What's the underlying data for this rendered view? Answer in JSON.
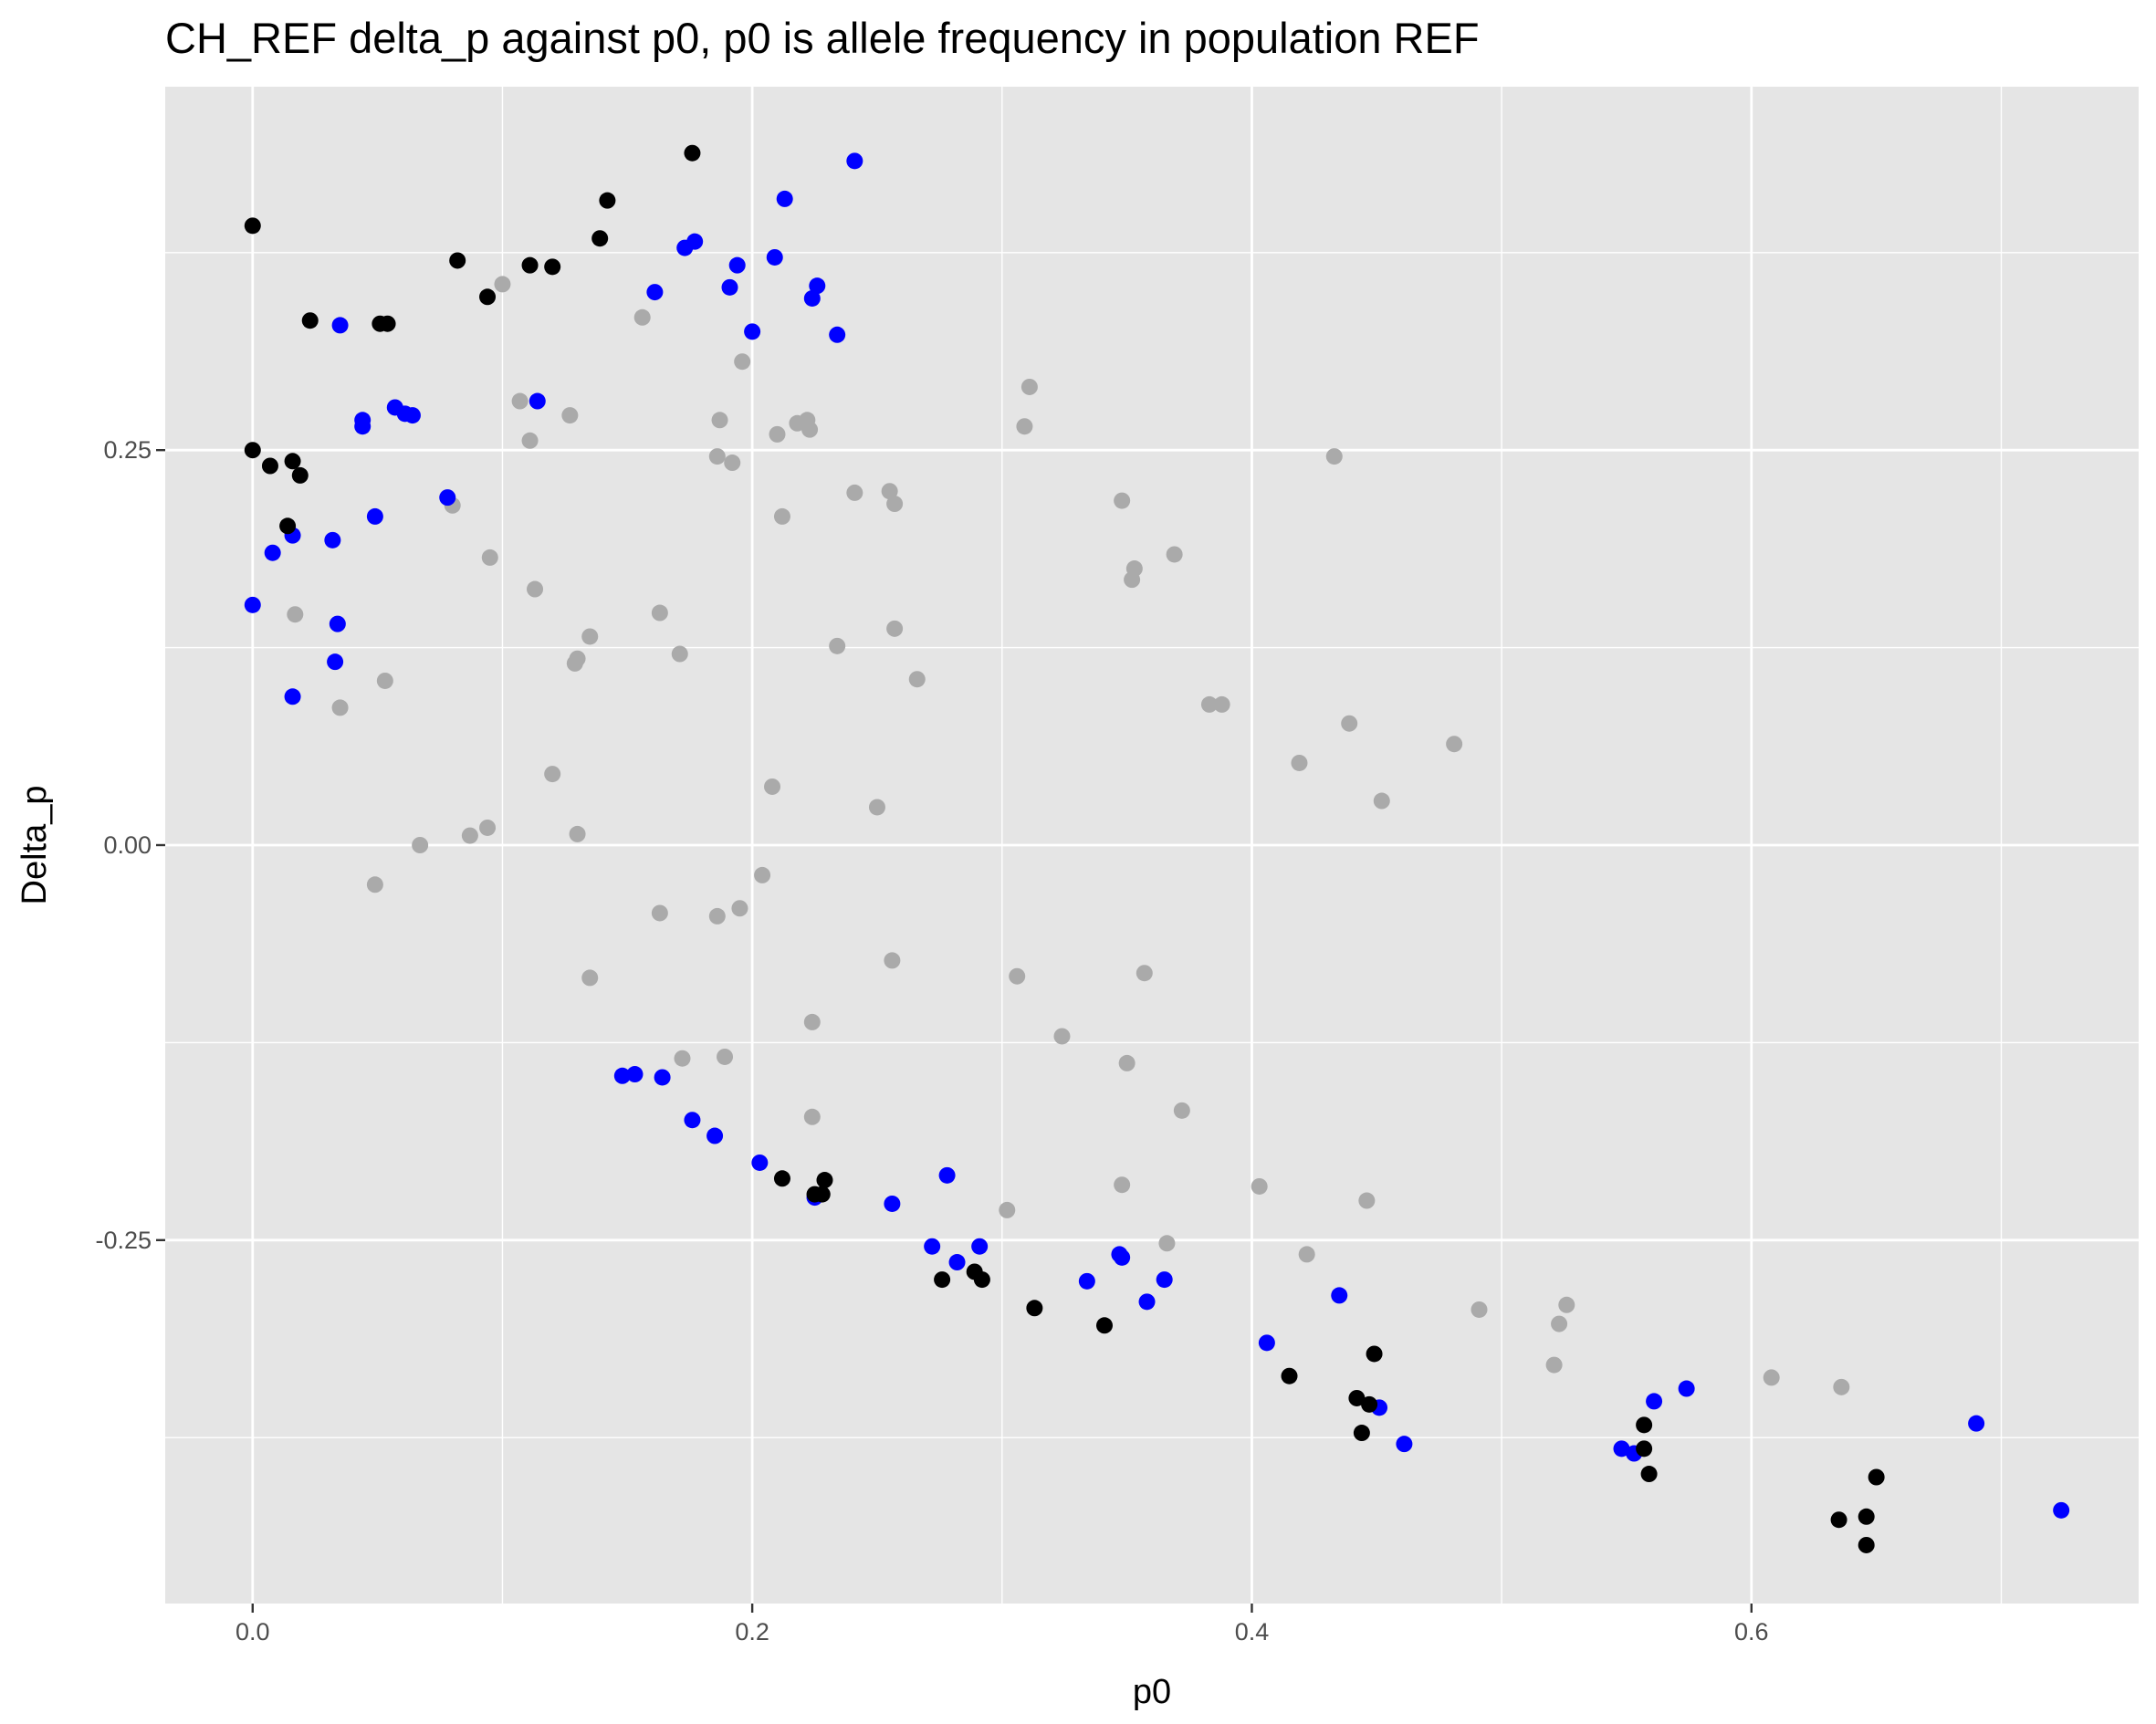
{
  "chart_data": {
    "type": "scatter",
    "title": "CH_REF delta_p against p0, p0 is allele frequency in population REF",
    "xlabel": "p0",
    "ylabel": "Delta_p",
    "xlim": [
      -0.035,
      0.755
    ],
    "ylim": [
      -0.48,
      0.48
    ],
    "x_ticks": [
      0.0,
      0.2,
      0.4,
      0.6
    ],
    "x_tick_labels": [
      "0.0",
      "0.2",
      "0.4",
      "0.6"
    ],
    "y_ticks": [
      -0.25,
      0.0,
      0.25
    ],
    "y_tick_labels": [
      "-0.25",
      "0.00",
      "0.25"
    ],
    "grid": true,
    "legend": "none",
    "colors": {
      "panel_background": "#e5e5e5",
      "grid": "#ffffff",
      "gray": "#aaaaaa",
      "blue": "#0000ff",
      "black": "#000000"
    },
    "series": [
      {
        "color": "gray",
        "points": [
          [
            0.1,
            0.355
          ],
          [
            0.156,
            0.334
          ],
          [
            0.196,
            0.306
          ],
          [
            0.311,
            0.29
          ],
          [
            0.107,
            0.281
          ],
          [
            0.127,
            0.272
          ],
          [
            0.187,
            0.269
          ],
          [
            0.222,
            0.269
          ],
          [
            0.218,
            0.267
          ],
          [
            0.223,
            0.263
          ],
          [
            0.21,
            0.26
          ],
          [
            0.309,
            0.265
          ],
          [
            0.111,
            0.256
          ],
          [
            0.186,
            0.246
          ],
          [
            0.192,
            0.242
          ],
          [
            0.433,
            0.246
          ],
          [
            0.241,
            0.223
          ],
          [
            0.255,
            0.224
          ],
          [
            0.257,
            0.216
          ],
          [
            0.348,
            0.218
          ],
          [
            0.08,
            0.215
          ],
          [
            0.212,
            0.208
          ],
          [
            0.369,
            0.184
          ],
          [
            0.095,
            0.182
          ],
          [
            0.353,
            0.175
          ],
          [
            0.352,
            0.168
          ],
          [
            0.113,
            0.162
          ],
          [
            0.017,
            0.146
          ],
          [
            0.163,
            0.147
          ],
          [
            0.257,
            0.137
          ],
          [
            0.135,
            0.132
          ],
          [
            0.234,
            0.126
          ],
          [
            0.171,
            0.121
          ],
          [
            0.13,
            0.118
          ],
          [
            0.129,
            0.115
          ],
          [
            0.266,
            0.105
          ],
          [
            0.053,
            0.104
          ],
          [
            0.035,
            0.087
          ],
          [
            0.383,
            0.089
          ],
          [
            0.388,
            0.089
          ],
          [
            0.439,
            0.077
          ],
          [
            0.481,
            0.064
          ],
          [
            0.419,
            0.052
          ],
          [
            0.12,
            0.045
          ],
          [
            0.208,
            0.037
          ],
          [
            0.25,
            0.024
          ],
          [
            0.452,
            0.028
          ],
          [
            0.094,
            0.011
          ],
          [
            0.087,
            0.006
          ],
          [
            0.13,
            0.007
          ],
          [
            0.067,
            0.0
          ],
          [
            0.204,
            -0.019
          ],
          [
            0.049,
            -0.025
          ],
          [
            0.195,
            -0.04
          ],
          [
            0.163,
            -0.043
          ],
          [
            0.186,
            -0.045
          ],
          [
            0.256,
            -0.073
          ],
          [
            0.306,
            -0.083
          ],
          [
            0.357,
            -0.081
          ],
          [
            0.135,
            -0.084
          ],
          [
            0.224,
            -0.112
          ],
          [
            0.324,
            -0.121
          ],
          [
            0.172,
            -0.135
          ],
          [
            0.189,
            -0.134
          ],
          [
            0.35,
            -0.138
          ],
          [
            0.224,
            -0.172
          ],
          [
            0.372,
            -0.168
          ],
          [
            0.348,
            -0.215
          ],
          [
            0.403,
            -0.216
          ],
          [
            0.446,
            -0.225
          ],
          [
            0.302,
            -0.231
          ],
          [
            0.366,
            -0.252
          ],
          [
            0.422,
            -0.259
          ],
          [
            0.526,
            -0.291
          ],
          [
            0.491,
            -0.294
          ],
          [
            0.523,
            -0.303
          ],
          [
            0.521,
            -0.329
          ],
          [
            0.608,
            -0.337
          ],
          [
            0.636,
            -0.343
          ]
        ]
      },
      {
        "color": "blue",
        "points": [
          [
            0.241,
            0.433
          ],
          [
            0.213,
            0.409
          ],
          [
            0.177,
            0.382
          ],
          [
            0.173,
            0.378
          ],
          [
            0.209,
            0.372
          ],
          [
            0.194,
            0.367
          ],
          [
            0.226,
            0.354
          ],
          [
            0.191,
            0.353
          ],
          [
            0.161,
            0.35
          ],
          [
            0.224,
            0.346
          ],
          [
            0.2,
            0.325
          ],
          [
            0.234,
            0.323
          ],
          [
            0.035,
            0.329
          ],
          [
            0.114,
            0.281
          ],
          [
            0.057,
            0.277
          ],
          [
            0.061,
            0.273
          ],
          [
            0.064,
            0.272
          ],
          [
            0.044,
            0.269
          ],
          [
            0.044,
            0.265
          ],
          [
            0.078,
            0.22
          ],
          [
            0.049,
            0.208
          ],
          [
            0.016,
            0.196
          ],
          [
            0.032,
            0.193
          ],
          [
            0.008,
            0.185
          ],
          [
            0.0,
            0.152
          ],
          [
            0.034,
            0.14
          ],
          [
            0.033,
            0.116
          ],
          [
            0.016,
            0.094
          ],
          [
            0.153,
            -0.145
          ],
          [
            0.148,
            -0.146
          ],
          [
            0.164,
            -0.147
          ],
          [
            0.176,
            -0.174
          ],
          [
            0.185,
            -0.184
          ],
          [
            0.203,
            -0.201
          ],
          [
            0.278,
            -0.209
          ],
          [
            0.225,
            -0.223
          ],
          [
            0.256,
            -0.227
          ],
          [
            0.272,
            -0.254
          ],
          [
            0.291,
            -0.254
          ],
          [
            0.282,
            -0.264
          ],
          [
            0.347,
            -0.259
          ],
          [
            0.348,
            -0.261
          ],
          [
            0.365,
            -0.275
          ],
          [
            0.334,
            -0.276
          ],
          [
            0.358,
            -0.289
          ],
          [
            0.435,
            -0.285
          ],
          [
            0.406,
            -0.315
          ],
          [
            0.451,
            -0.356
          ],
          [
            0.561,
            -0.352
          ],
          [
            0.574,
            -0.344
          ],
          [
            0.461,
            -0.379
          ],
          [
            0.548,
            -0.382
          ],
          [
            0.553,
            -0.385
          ],
          [
            0.69,
            -0.366
          ],
          [
            0.724,
            -0.421
          ]
        ]
      },
      {
        "color": "black",
        "points": [
          [
            0.176,
            0.438
          ],
          [
            0.142,
            0.408
          ],
          [
            0.0,
            0.392
          ],
          [
            0.139,
            0.384
          ],
          [
            0.082,
            0.37
          ],
          [
            0.111,
            0.367
          ],
          [
            0.12,
            0.366
          ],
          [
            0.094,
            0.347
          ],
          [
            0.023,
            0.332
          ],
          [
            0.051,
            0.33
          ],
          [
            0.054,
            0.33
          ],
          [
            0.0,
            0.25
          ],
          [
            0.007,
            0.24
          ],
          [
            0.016,
            0.243
          ],
          [
            0.019,
            0.234
          ],
          [
            0.014,
            0.202
          ],
          [
            0.212,
            -0.211
          ],
          [
            0.229,
            -0.212
          ],
          [
            0.228,
            -0.221
          ],
          [
            0.225,
            -0.221
          ],
          [
            0.289,
            -0.27
          ],
          [
            0.276,
            -0.275
          ],
          [
            0.292,
            -0.275
          ],
          [
            0.313,
            -0.293
          ],
          [
            0.341,
            -0.304
          ],
          [
            0.449,
            -0.322
          ],
          [
            0.415,
            -0.336
          ],
          [
            0.442,
            -0.35
          ],
          [
            0.447,
            -0.354
          ],
          [
            0.444,
            -0.372
          ],
          [
            0.557,
            -0.367
          ],
          [
            0.557,
            -0.382
          ],
          [
            0.559,
            -0.398
          ],
          [
            0.65,
            -0.4
          ],
          [
            0.646,
            -0.425
          ],
          [
            0.635,
            -0.427
          ],
          [
            0.646,
            -0.443
          ]
        ]
      }
    ]
  }
}
